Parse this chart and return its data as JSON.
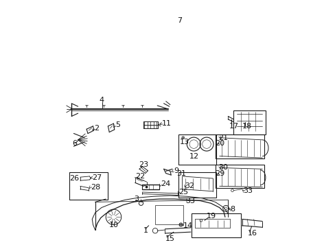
{
  "bg_color": "#ffffff",
  "fig_width": 4.89,
  "fig_height": 3.6,
  "dpi": 100,
  "image_data": ""
}
